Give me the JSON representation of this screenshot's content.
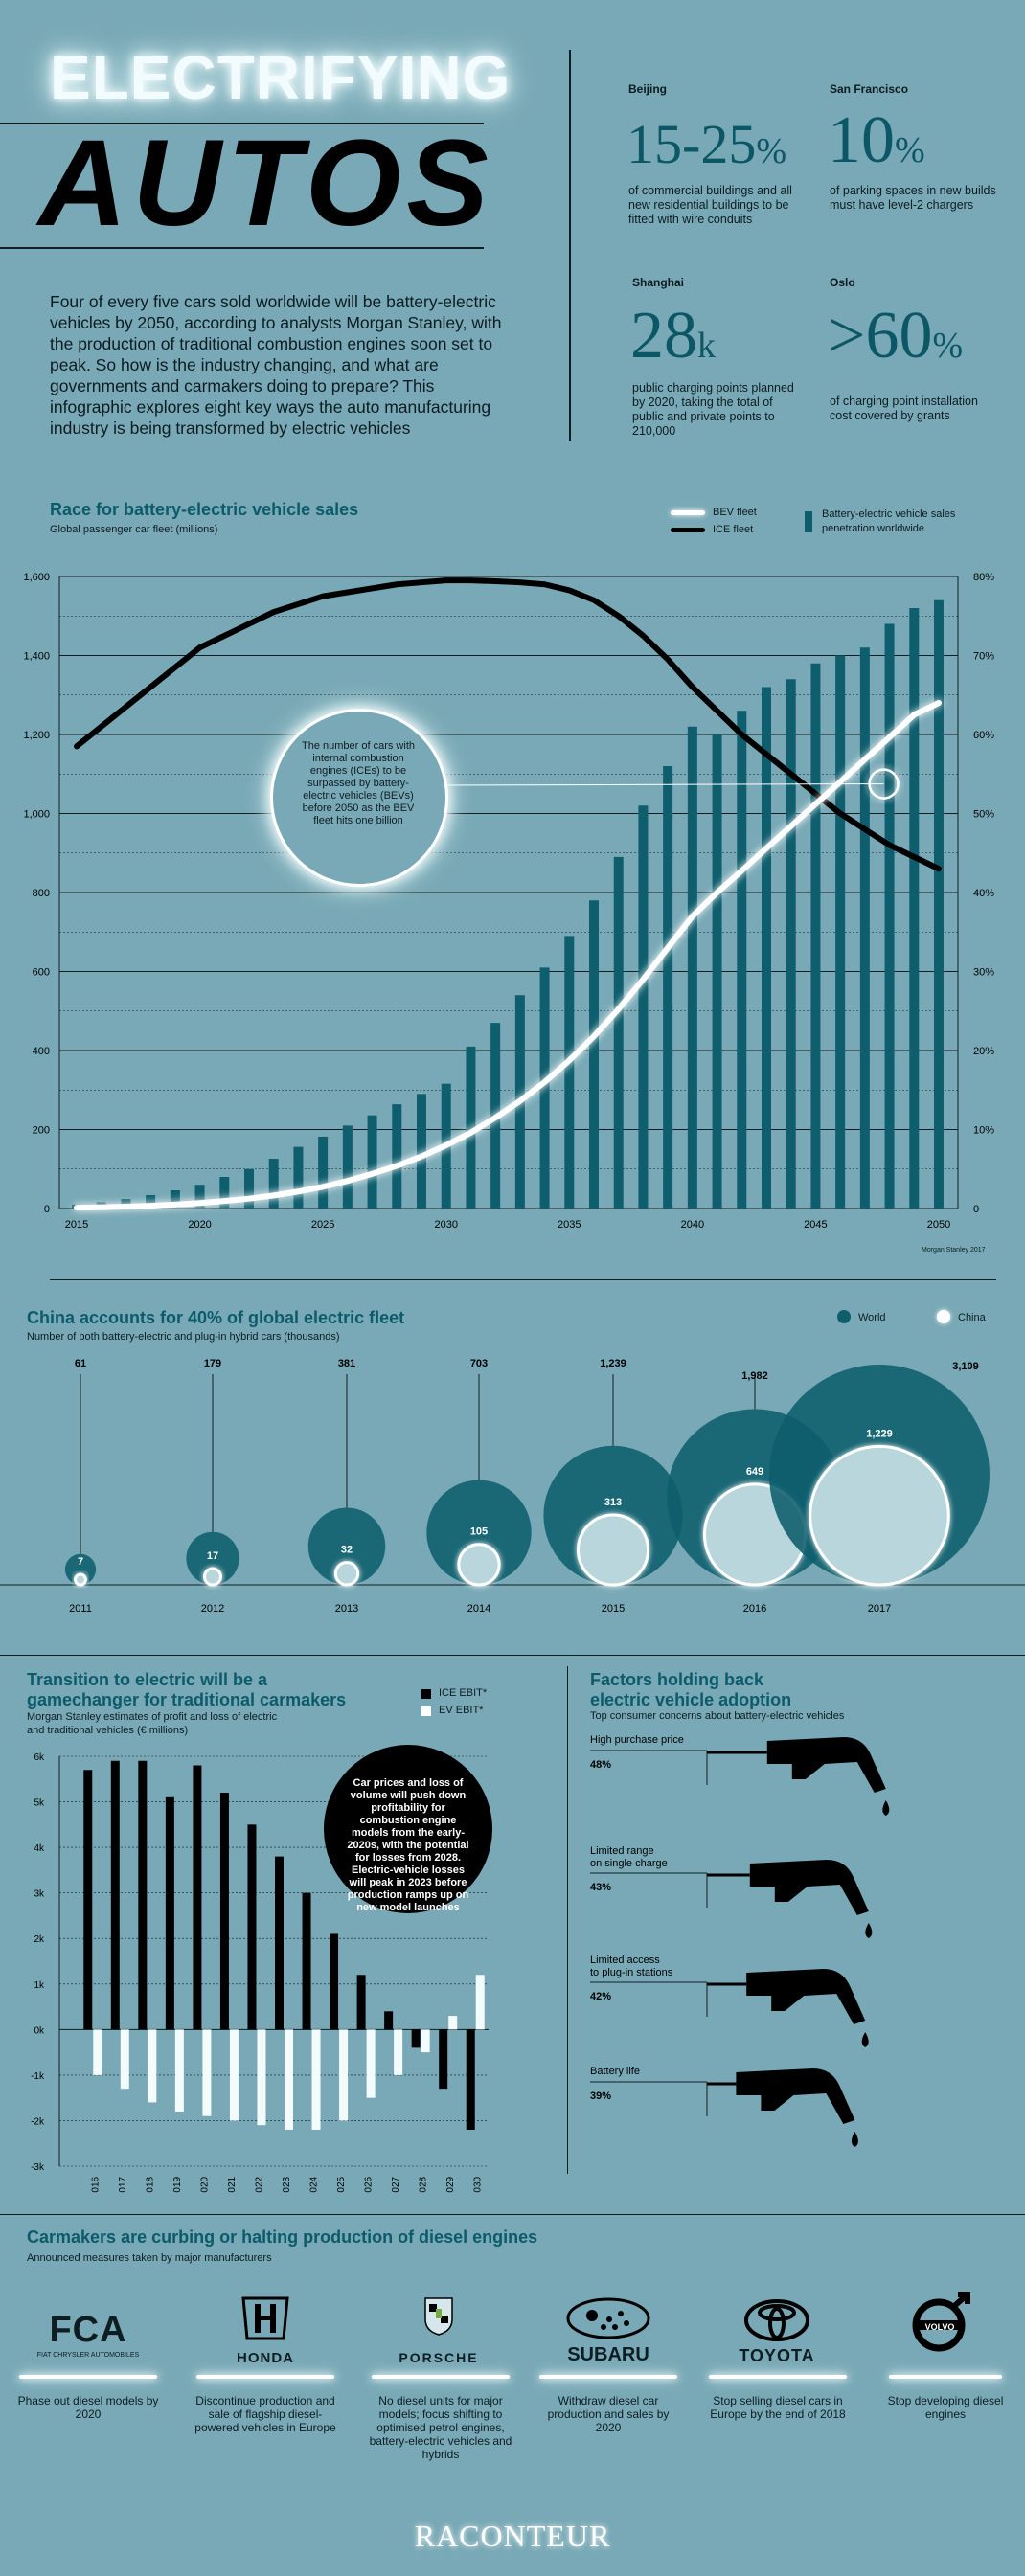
{
  "header": {
    "title_line1": "ELECTRIFYING",
    "title_line2": "AUTOS",
    "intro": "Four of every five cars sold worldwide will be battery-electric vehicles by 2050, according to analysts Morgan Stanley, with the production of traditional combustion engines soon set to peak. So how is the industry changing, and what are governments and carmakers doing to prepare? This infographic explores eight key ways the auto manufacturing industry is being transformed by electric vehicles"
  },
  "cities": [
    {
      "name": "Beijing",
      "value": "15-25",
      "unit": "%",
      "desc": "of commercial buildings and all new residential buildings to be fitted with wire conduits"
    },
    {
      "name": "San Francisco",
      "value": "10",
      "unit": "%",
      "desc": "of parking spaces in new builds must have level-2 chargers"
    },
    {
      "name": "Shanghai",
      "value": "28",
      "unit": "k",
      "desc": "public charging points planned by 2020, taking the total of public and private points to 210,000"
    },
    {
      "name": "Oslo",
      "value": ">60",
      "unit": "%",
      "desc": "of charging point installation cost covered by grants"
    }
  ],
  "race": {
    "title": "Race for battery-electric vehicle sales",
    "subtitle": "Global passenger car fleet (millions)",
    "legend": {
      "bev": "BEV fleet",
      "ice": "ICE fleet",
      "sales_line1": "Battery-electric vehicle sales",
      "sales_line2": "penetration worldwide"
    },
    "annotation": "The number of cars with internal combustion engines (ICEs) to be surpassed by battery-electric vehicles (BEVs) before 2050 as the BEV fleet hits one billion",
    "source": "Morgan Stanley 2017",
    "left_ticks": [
      "0",
      "200",
      "400",
      "600",
      "800",
      "1,000",
      "1,200",
      "1,400",
      "1,600"
    ],
    "right_ticks": [
      "0",
      "10%",
      "20%",
      "30%",
      "40%",
      "50%",
      "60%",
      "70%",
      "80%"
    ],
    "x_ticks": [
      "2015",
      "2020",
      "2025",
      "2030",
      "2035",
      "2040",
      "2045",
      "2050"
    ]
  },
  "china": {
    "title": "China accounts for 40% of global electric fleet",
    "subtitle": "Number of both battery-electric and plug-in hybrid cars (thousands)",
    "legend_world": "World",
    "legend_china": "China",
    "years": [
      "2011",
      "2012",
      "2013",
      "2014",
      "2015",
      "2016",
      "2017"
    ],
    "world": [
      "61",
      "179",
      "381",
      "703",
      "1,239",
      "1,982",
      "3,109"
    ],
    "china": [
      "7",
      "17",
      "32",
      "105",
      "313",
      "649",
      "1,229"
    ]
  },
  "transition": {
    "title_line1": "Transition to electric will be a",
    "title_line2": "gamechanger for traditional carmakers",
    "subtitle_line1": "Morgan Stanley estimates of profit and loss of electric",
    "subtitle_line2": "and traditional vehicles (€ millions)",
    "legend_ice": "ICE EBIT*",
    "legend_ev": "EV EBIT*",
    "annotation": "Car prices and loss of volume will push down profitability for combustion engine models from the early-2020s, with the potential for losses from 2028. Electric-vehicle losses will peak in 2023 before production ramps up on new model launches",
    "y_ticks": [
      "-3k",
      "-2k",
      "-1k",
      "0k",
      "1k",
      "2k",
      "3k",
      "4k",
      "5k",
      "6k"
    ],
    "years": [
      "2016",
      "2017",
      "2018",
      "2019",
      "2020",
      "2021",
      "2022",
      "2023",
      "2024",
      "2025",
      "2026",
      "2027",
      "2028",
      "2029",
      "2030"
    ]
  },
  "factors": {
    "title_line1": "Factors holding back",
    "title_line2": "electric vehicle adoption",
    "subtitle": "Top consumer concerns about battery-electric vehicles",
    "items": [
      {
        "label": "High purchase price",
        "label2": "",
        "pct": "48%",
        "value": 48
      },
      {
        "label": "Limited range",
        "label2": "on single charge",
        "pct": "43%",
        "value": 43
      },
      {
        "label": "Limited access",
        "label2": "to plug-in stations",
        "pct": "42%",
        "value": 42
      },
      {
        "label": "Battery life",
        "label2": "",
        "pct": "39%",
        "value": 39
      }
    ]
  },
  "diesel": {
    "title": "Carmakers are curbing or halting production of diesel engines",
    "subtitle": "Announced measures taken by major manufacturers",
    "makers": [
      {
        "logo": "FCA",
        "logo_sub": "FIAT CHRYSLER AUTOMOBILES",
        "desc": "Phase out diesel models by 2020"
      },
      {
        "logo": "HONDA",
        "logo_sub": "",
        "desc": "Discontinue production and sale of flagship diesel-powered vehicles in Europe"
      },
      {
        "logo": "PORSCHE",
        "logo_sub": "",
        "desc": "No diesel units for major models; focus shifting to optimised petrol engines, battery-electric vehicles and hybrids"
      },
      {
        "logo": "SUBARU",
        "logo_sub": "",
        "desc": "Withdraw diesel car production and sales by 2020"
      },
      {
        "logo": "TOYOTA",
        "logo_sub": "",
        "desc": "Stop selling diesel cars in Europe by the end of 2018"
      },
      {
        "logo": "VOLVO",
        "logo_sub": "",
        "desc": "Stop developing diesel engines"
      }
    ]
  },
  "footer": {
    "brand": "RACONTEUR"
  },
  "chart_data": [
    {
      "type": "bar+line",
      "title": "Race for battery-electric vehicle sales",
      "ylabel": "Global passenger car fleet (millions)",
      "ylim": [
        0,
        1600
      ],
      "y2lim": [
        0,
        80
      ],
      "grid": true,
      "legend": "top-right",
      "x": [
        2015,
        2016,
        2017,
        2018,
        2019,
        2020,
        2021,
        2022,
        2023,
        2024,
        2025,
        2026,
        2027,
        2028,
        2029,
        2030,
        2031,
        2032,
        2033,
        2034,
        2035,
        2036,
        2037,
        2038,
        2039,
        2040,
        2041,
        2042,
        2043,
        2044,
        2045,
        2046,
        2047,
        2048,
        2049,
        2050
      ],
      "series": [
        {
          "name": "Battery-electric vehicle sales penetration worldwide",
          "axis": "right",
          "type": "bar",
          "values": [
            0.5,
            0.8,
            1.2,
            1.7,
            2.3,
            3,
            4,
            5,
            6.3,
            7.8,
            9.1,
            10.5,
            11.8,
            13.2,
            14.5,
            15.8,
            20.5,
            23.5,
            27,
            30.5,
            34.5,
            39,
            44.5,
            51,
            56,
            61,
            60,
            63,
            66,
            67,
            69,
            70,
            71,
            74,
            76,
            77
          ]
        },
        {
          "name": "BEV fleet",
          "axis": "left",
          "type": "line",
          "values": [
            2,
            3,
            5,
            7,
            10,
            14,
            19,
            25,
            33,
            43,
            55,
            70,
            88,
            108,
            132,
            160,
            192,
            230,
            272,
            320,
            375,
            436,
            505,
            580,
            660,
            740,
            800,
            855,
            912,
            968,
            1024,
            1080,
            1137,
            1193,
            1250,
            1280
          ]
        },
        {
          "name": "ICE fleet",
          "axis": "left",
          "type": "line",
          "values": [
            1170,
            1220,
            1270,
            1320,
            1370,
            1420,
            1450,
            1480,
            1510,
            1530,
            1550,
            1560,
            1570,
            1580,
            1585,
            1590,
            1590,
            1588,
            1585,
            1580,
            1565,
            1540,
            1500,
            1450,
            1390,
            1320,
            1260,
            1200,
            1150,
            1100,
            1050,
            1000,
            960,
            920,
            890,
            860
          ]
        }
      ]
    },
    {
      "type": "bubble",
      "title": "China accounts for 40% of global electric fleet",
      "ylabel": "Number of both battery-electric and plug-in hybrid cars (thousands)",
      "categories": [
        "2011",
        "2012",
        "2013",
        "2014",
        "2015",
        "2016",
        "2017"
      ],
      "series": [
        {
          "name": "World",
          "values": [
            61,
            179,
            381,
            703,
            1239,
            1982,
            3109
          ]
        },
        {
          "name": "China",
          "values": [
            7,
            17,
            32,
            105,
            313,
            649,
            1229
          ]
        }
      ]
    },
    {
      "type": "bar",
      "title": "Transition to electric will be a gamechanger for traditional carmakers",
      "ylabel": "Morgan Stanley estimates of profit and loss of electric and traditional vehicles (€ millions)",
      "ylim": [
        -3000,
        6000
      ],
      "legend": "top-right",
      "categories": [
        "2016",
        "2017",
        "2018",
        "2019",
        "2020",
        "2021",
        "2022",
        "2023",
        "2024",
        "2025",
        "2026",
        "2027",
        "2028",
        "2029",
        "2030"
      ],
      "series": [
        {
          "name": "ICE EBIT*",
          "values": [
            5700,
            5900,
            5900,
            5100,
            5800,
            5200,
            4500,
            3800,
            3000,
            2100,
            1200,
            400,
            -400,
            -1300,
            -2200
          ]
        },
        {
          "name": "EV EBIT*",
          "values": [
            -1000,
            -1300,
            -1600,
            -1800,
            -1900,
            -2000,
            -2100,
            -2200,
            -2200,
            -2000,
            -1500,
            -1000,
            -500,
            300,
            1200
          ]
        }
      ]
    },
    {
      "type": "bar",
      "title": "Factors holding back electric vehicle adoption",
      "ylabel": "Top consumer concerns about battery-electric vehicles",
      "categories": [
        "High purchase price",
        "Limited range on single charge",
        "Limited access to plug-in stations",
        "Battery life"
      ],
      "values": [
        48,
        43,
        42,
        39
      ]
    }
  ]
}
